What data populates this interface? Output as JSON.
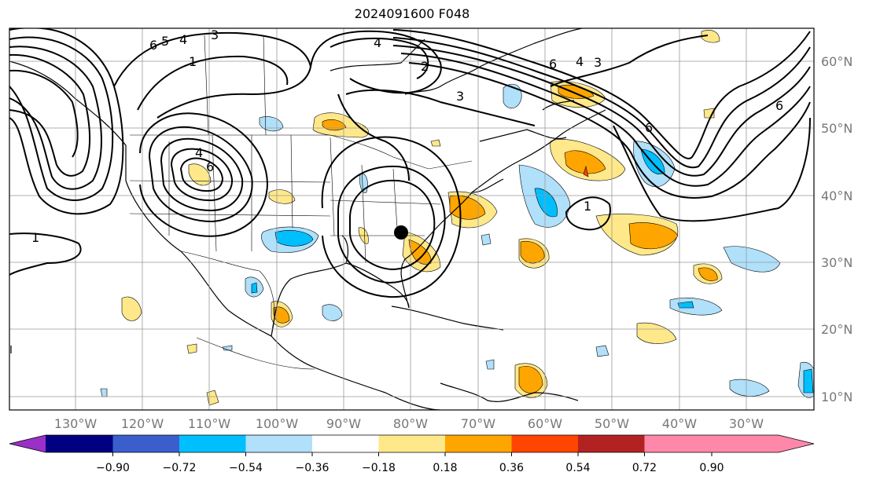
{
  "title": "2024091600 F048",
  "lon_labels": [
    "130°W",
    "120°W",
    "110°W",
    "100°W",
    "90°W",
    "80°W",
    "70°W",
    "60°W",
    "50°W",
    "40°W",
    "30°W"
  ],
  "lat_labels": [
    "60°N",
    "50°N",
    "40°N",
    "30°N",
    "20°N",
    "10°N"
  ],
  "colorbar": {
    "ticks": [
      "−0.90",
      "−0.72",
      "−0.54",
      "−0.36",
      "−0.18",
      "0.18",
      "0.36",
      "0.54",
      "0.72",
      "0.90"
    ],
    "colors": [
      "#9b30c8",
      "#000080",
      "#3a5fcd",
      "#00bfff",
      "#b0e0fa",
      "#ffffff",
      "#ffe88a",
      "#ffa500",
      "#ff4500",
      "#b22222",
      "#ff88aa"
    ]
  },
  "contour_labels": [
    "6",
    "5",
    "4",
    "3",
    "1",
    "4",
    "6",
    "4",
    "3",
    "6",
    "6",
    "4",
    "3",
    "6",
    "1",
    "1",
    "2"
  ],
  "marker": "storm-center-dot"
}
